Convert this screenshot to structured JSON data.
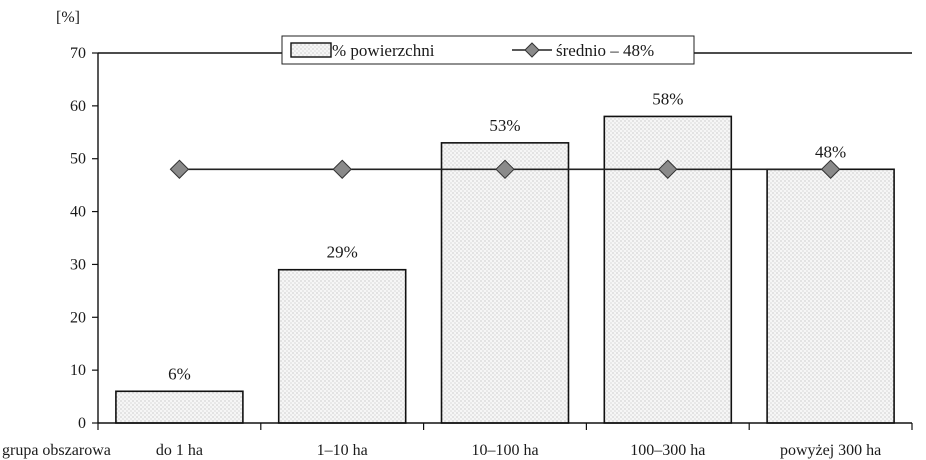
{
  "chart_data": {
    "type": "bar",
    "y_unit_label": "[%]",
    "axis_title_x": "grupa obszarowa",
    "categories": [
      "do 1 ha",
      "1–10 ha",
      "10–100 ha",
      "100–300 ha",
      "powyżej 300 ha"
    ],
    "series": [
      {
        "name": "% powierzchni",
        "type": "bar",
        "values": [
          6,
          29,
          53,
          58,
          48
        ]
      },
      {
        "name": "średnio – 48%",
        "type": "line",
        "values": [
          48,
          48,
          48,
          48,
          48
        ]
      }
    ],
    "data_labels": [
      "6%",
      "29%",
      "53%",
      "58%",
      "48%"
    ],
    "ylim": [
      0,
      70
    ],
    "yticks": [
      0,
      10,
      20,
      30,
      40,
      50,
      60,
      70
    ],
    "grid": false,
    "legend_position": "top-center",
    "colors": {
      "bar_fill": "#f4f4f4",
      "bar_stroke": "#111111",
      "line": "#222222",
      "marker": "#8a8a8a"
    }
  }
}
